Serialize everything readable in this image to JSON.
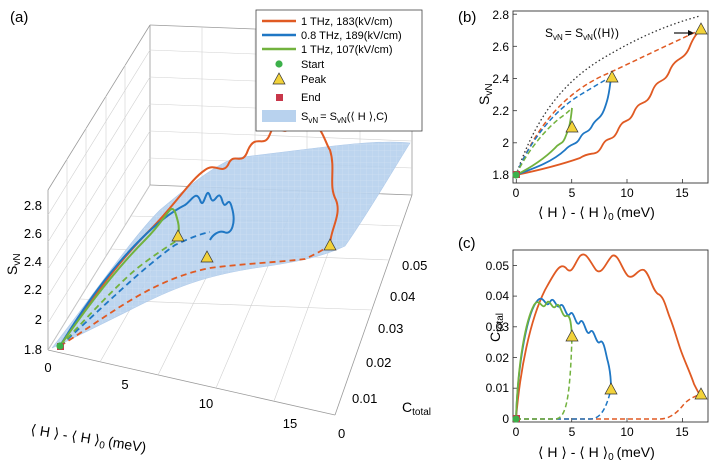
{
  "colors": {
    "orange": "#e05a23",
    "blue": "#1f77c4",
    "green": "#72b23e",
    "start": "#3cb04a",
    "peak": "#f2d23a",
    "end": "#c8374a",
    "surface": "#b8d2ee",
    "grid": "#c4c4c4"
  },
  "chart_data": [
    {
      "panel": "(a)",
      "type": "line",
      "xlabel": "⟨ H ⟩ - ⟨ H ⟩",
      "xlabel_sub": "0",
      "xlabel_unit": "(meV)",
      "ylabel": "C",
      "ylabel_sub": "total",
      "zlabel": "S",
      "zlabel_sub": "vN",
      "x_ticks": [
        "0",
        "5",
        "10",
        "15"
      ],
      "y_ticks": [
        "0",
        "0.01",
        "0.02",
        "0.03",
        "0.04",
        "0.05"
      ],
      "z_ticks": [
        "1.8",
        "2",
        "2.2",
        "2.4",
        "2.6",
        "2.8"
      ],
      "xlim": [
        0,
        18
      ],
      "ylim": [
        0,
        0.055
      ],
      "zlim": [
        1.75,
        2.85
      ],
      "legend": [
        "1 THz, 183(kV/cm)",
        "0.8 THz, 189(kV/cm)",
        "1 THz, 107(kV/cm)",
        "Start",
        "Peak",
        "End",
        "S"
      ],
      "legend_surface_sub": "vN",
      "legend_surface_eq": "= S",
      "legend_surface_sub2": "vN",
      "legend_surface_args": "(⟨ H ⟩,C)",
      "series": [
        {
          "name": "1 THz, 183(kV/cm)",
          "peak": {
            "x": 16.6,
            "y": 0.008,
            "z": 2.74
          }
        },
        {
          "name": "0.8 THz, 189(kV/cm)",
          "peak": {
            "x": 8.6,
            "y": 0.01,
            "z": 2.41
          }
        },
        {
          "name": "1 THz, 107(kV/cm)",
          "peak": {
            "x": 5.0,
            "y": 0.027,
            "z": 2.12
          }
        }
      ],
      "start": {
        "x": 0,
        "y": 0,
        "z": 1.8
      }
    },
    {
      "panel": "(b)",
      "type": "line",
      "xlabel": "⟨ H ⟩ - ⟨ H ⟩",
      "xlabel_sub": "0",
      "xlabel_unit": "(meV)",
      "ylabel": "S",
      "ylabel_sub": "vN",
      "x_ticks": [
        "0",
        "5",
        "10",
        "15"
      ],
      "y_ticks": [
        "1.8",
        "2",
        "2.2",
        "2.4",
        "2.6",
        "2.8"
      ],
      "xlim": [
        -0.3,
        17.3
      ],
      "ylim": [
        1.75,
        2.82
      ],
      "annotation": "S",
      "annotation_sub": "vN",
      "annotation_eq": "= S",
      "annotation_sub2": "vN",
      "annotation_args": "(⟨H⟩)",
      "peaks": [
        {
          "x": 16.6,
          "y": 2.74
        },
        {
          "x": 8.6,
          "y": 2.41
        },
        {
          "x": 5.0,
          "y": 2.12
        }
      ],
      "start": {
        "x": 0,
        "y": 1.8
      }
    },
    {
      "panel": "(c)",
      "type": "line",
      "xlabel": "⟨ H ⟩ - ⟨ H ⟩",
      "xlabel_sub": "0",
      "xlabel_unit": "(meV)",
      "ylabel": "C",
      "ylabel_sub": "total",
      "x_ticks": [
        "0",
        "5",
        "10",
        "15"
      ],
      "y_ticks": [
        "0",
        "0.01",
        "0.02",
        "0.03",
        "0.04",
        "0.05"
      ],
      "xlim": [
        -0.3,
        17.3
      ],
      "ylim": [
        -0.001,
        0.055
      ],
      "peaks": [
        {
          "x": 16.6,
          "y": 0.008
        },
        {
          "x": 8.6,
          "y": 0.01
        },
        {
          "x": 5.0,
          "y": 0.027
        }
      ],
      "start": {
        "x": 0,
        "y": 0
      }
    }
  ]
}
